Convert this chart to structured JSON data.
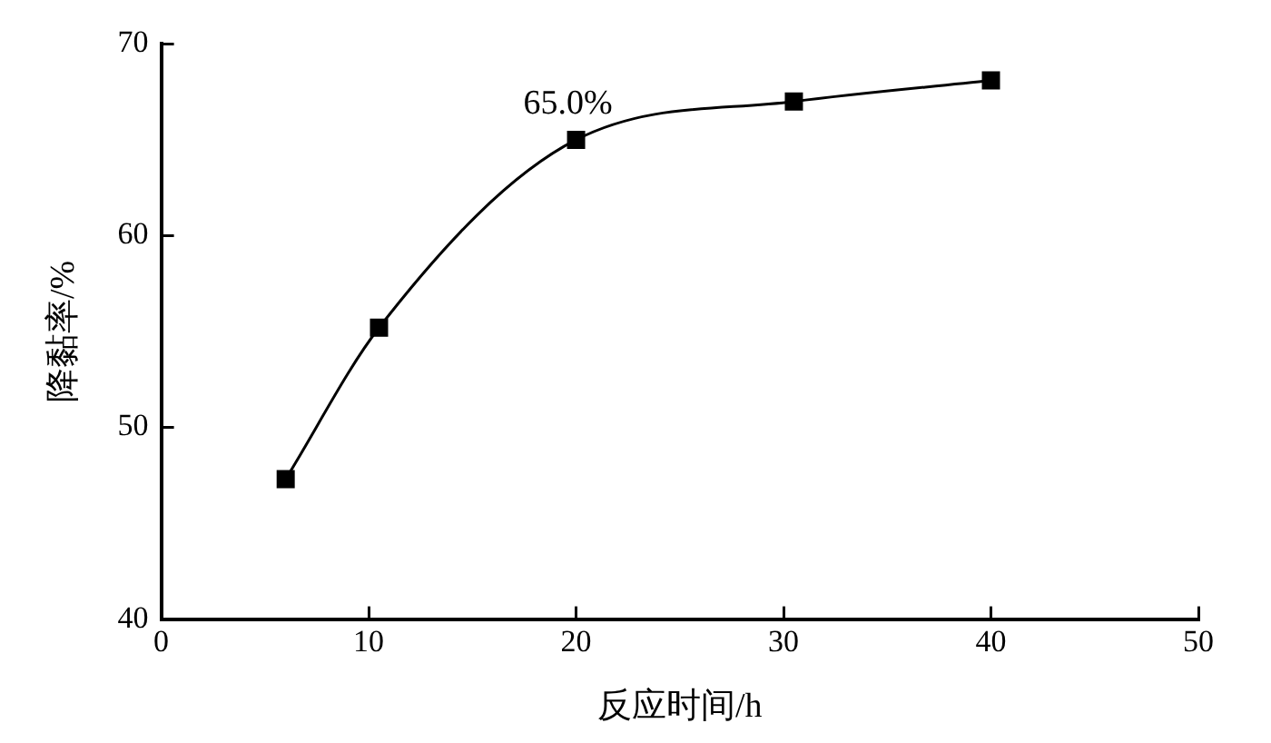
{
  "chart_data": {
    "type": "line",
    "xlabel": "反应时间/h",
    "ylabel": "降黏率/%",
    "x": [
      6,
      10.5,
      20,
      30.5,
      40
    ],
    "series": [
      {
        "color": "#000000",
        "values": [
          47.3,
          55.2,
          65.0,
          67.0,
          68.1
        ]
      }
    ],
    "xlim": [
      0,
      50
    ],
    "xticks": [
      0,
      10,
      20,
      30,
      40,
      50
    ],
    "ylim": [
      40,
      70
    ],
    "yticks": [
      40,
      50,
      60,
      70
    ],
    "grid": false,
    "legend": false,
    "marker": "square",
    "line_style": "solid",
    "annotations": [
      {
        "text": "65.0%",
        "x": 20,
        "y": 65.0
      }
    ]
  }
}
